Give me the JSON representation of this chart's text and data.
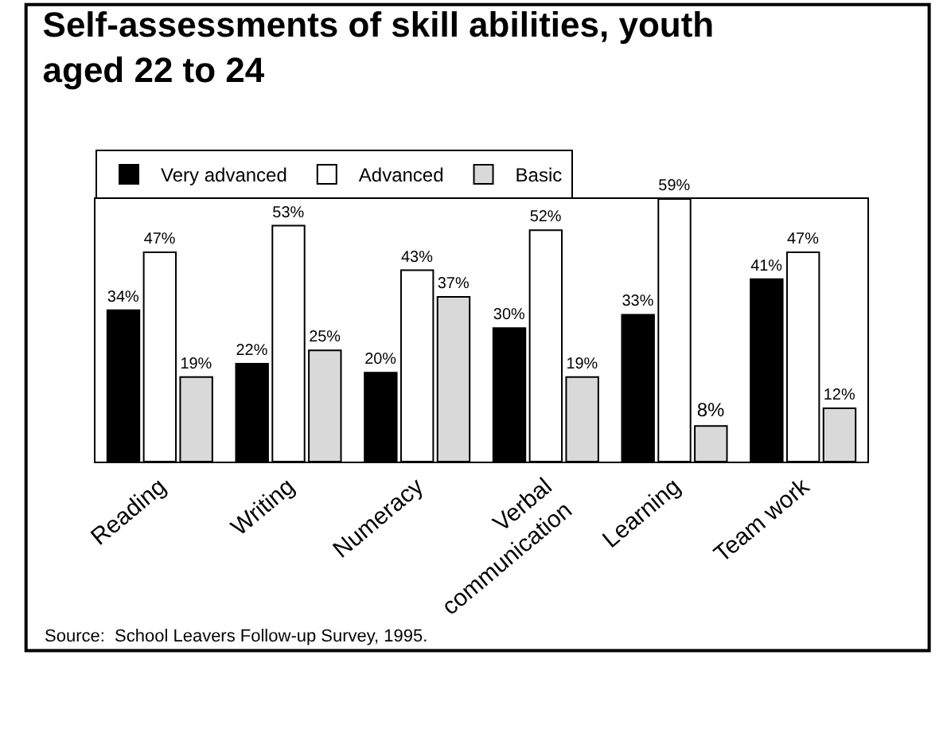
{
  "chart_data": {
    "type": "bar",
    "title": "Self-assessments of skill abilities, youth aged 22 to 24",
    "categories": [
      "Reading",
      "Writing",
      "Numeracy",
      "Verbal communication",
      "Learning",
      "Team work"
    ],
    "series": [
      {
        "name": "Very advanced",
        "color": "#000000",
        "values": [
          34,
          22,
          20,
          30,
          33,
          41
        ],
        "value_labels": [
          "34%",
          "22%",
          "20%",
          "30%",
          "33%",
          "41%"
        ]
      },
      {
        "name": "Advanced",
        "color": "#ffffff",
        "values": [
          47,
          53,
          43,
          52,
          59,
          47
        ],
        "value_labels": [
          "47%",
          "53%",
          "43%",
          "52%",
          "59%",
          "47%"
        ]
      },
      {
        "name": "Basic",
        "color": "#d9d9d9",
        "values": [
          19,
          25,
          37,
          19,
          8,
          12
        ],
        "value_labels": [
          "19%",
          "25%",
          "37%",
          "19%",
          "8%",
          "12%"
        ]
      }
    ],
    "legend": "top left",
    "annotations": [
      "Source:  School Leavers Follow-up Survey, 1995."
    ]
  }
}
